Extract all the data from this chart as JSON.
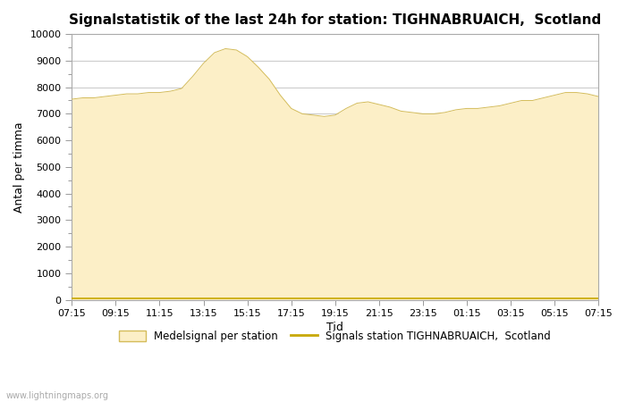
{
  "title": "Signalstatistik of the last 24h for station: TIGHNABRUAICH,  Scotland",
  "xlabel": "Tid",
  "ylabel": "Antal per timma",
  "x_ticks": [
    "07:15",
    "09:15",
    "11:15",
    "13:15",
    "15:15",
    "17:15",
    "19:15",
    "21:15",
    "23:15",
    "01:15",
    "03:15",
    "05:15",
    "07:15"
  ],
  "ylim": [
    0,
    10000
  ],
  "yticks": [
    0,
    1000,
    2000,
    3000,
    4000,
    5000,
    6000,
    7000,
    8000,
    9000,
    10000
  ],
  "background_color": "#ffffff",
  "fill_color": "#fcefc7",
  "fill_edge_color": "#d4bc5a",
  "line_color": "#c8a800",
  "watermark": "www.lightningmaps.org",
  "legend_fill": "Medelsignal per station",
  "legend_line": "Signals station TIGHNABRUAICH,  Scotland",
  "area_x": [
    0,
    1,
    2,
    3,
    4,
    5,
    6,
    7,
    8,
    9,
    10,
    11,
    12,
    13,
    14,
    15,
    16,
    17,
    18,
    19,
    20,
    21,
    22,
    23,
    24,
    25,
    26,
    27,
    28,
    29,
    30,
    31,
    32,
    33,
    34,
    35,
    36,
    37,
    38,
    39,
    40,
    41,
    42,
    43,
    44,
    45,
    46,
    47,
    48
  ],
  "area_values": [
    7550,
    7600,
    7600,
    7650,
    7700,
    7750,
    7750,
    7800,
    7800,
    7850,
    7950,
    8400,
    8900,
    9300,
    9450,
    9400,
    9150,
    8750,
    8300,
    7700,
    7200,
    7000,
    6950,
    6900,
    6950,
    7200,
    7400,
    7450,
    7350,
    7250,
    7100,
    7050,
    7000,
    7000,
    7050,
    7150,
    7200,
    7200,
    7250,
    7300,
    7400,
    7500,
    7500,
    7600,
    7700,
    7800,
    7800,
    7750,
    7650
  ],
  "line_values": [
    50,
    50,
    50,
    50,
    50,
    50,
    50,
    50,
    50,
    50,
    50,
    50,
    50,
    50,
    50,
    50,
    50,
    50,
    50,
    50,
    50,
    50,
    50,
    50,
    50,
    50,
    50,
    50,
    50,
    50,
    50,
    50,
    50,
    50,
    50,
    50,
    50,
    50,
    50,
    50,
    50,
    50,
    50,
    50,
    50,
    50,
    50,
    50,
    50
  ],
  "title_fontsize": 11,
  "tick_fontsize": 8,
  "ylabel_fontsize": 9,
  "xlabel_fontsize": 9
}
